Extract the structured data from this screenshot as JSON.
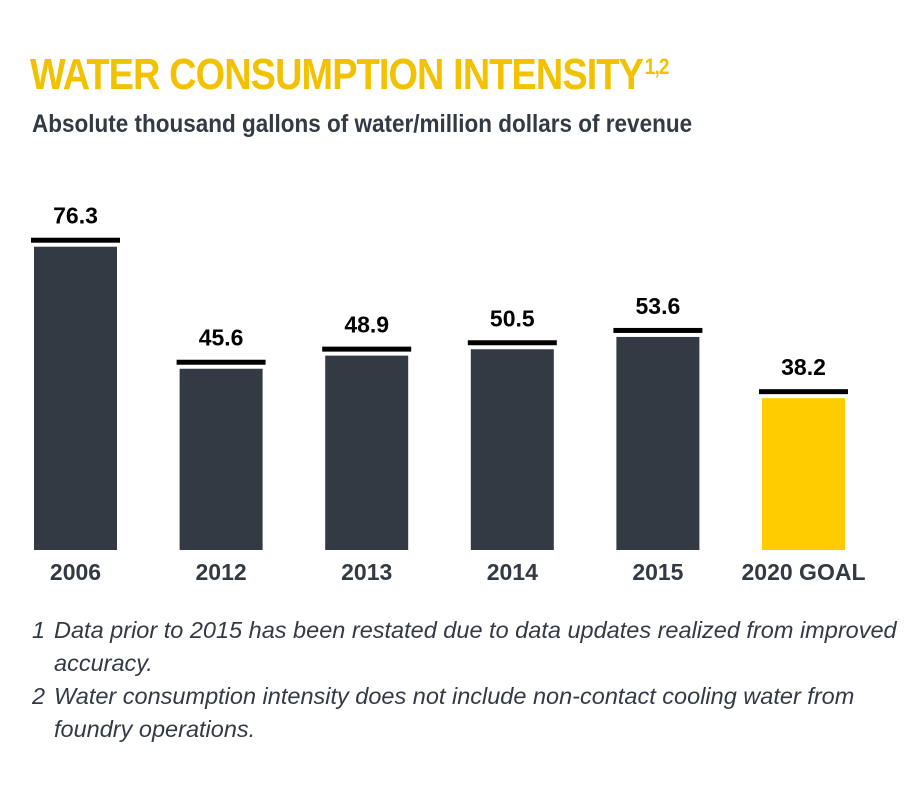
{
  "chart_data": {
    "type": "bar",
    "title": "WATER CONSUMPTION INTENSITY",
    "title_superscript": "1,2",
    "subtitle": "Absolute thousand gallons of water/million dollars of revenue",
    "categories": [
      "2006",
      "2012",
      "2013",
      "2014",
      "2015",
      "2020 GOAL"
    ],
    "values": [
      76.3,
      45.6,
      48.9,
      50.5,
      53.6,
      38.2
    ],
    "value_labels": [
      "76.3",
      "45.6",
      "48.9",
      "50.5",
      "53.6",
      "38.2"
    ],
    "ylim": [
      0,
      80
    ],
    "grid": false,
    "highlight_category": "2020 GOAL",
    "colors": {
      "bar": "#333a44",
      "highlight": "#ffcc00",
      "cap": "#000000",
      "title": "#f2c200"
    }
  },
  "footnotes": [
    {
      "num": "1",
      "text": "Data prior to 2015 has been restated due to data updates realized from improved accuracy."
    },
    {
      "num": "2",
      "text": "Water consumption intensity does not include non-contact cooling water from foundry operations."
    }
  ]
}
